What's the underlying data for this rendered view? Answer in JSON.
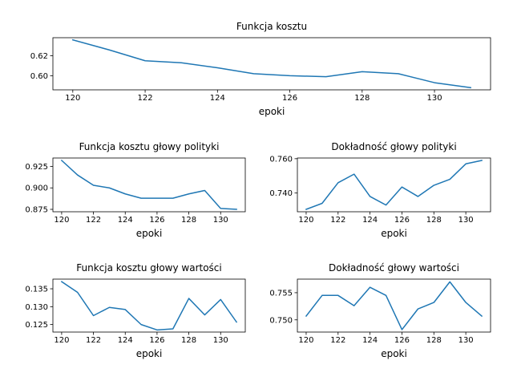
{
  "chart_data": [
    {
      "type": "line",
      "title": "Funkcja kosztu",
      "xlabel": "epoki",
      "ylabel": "",
      "x": [
        120,
        121,
        122,
        123,
        124,
        125,
        126,
        127,
        128,
        129,
        130,
        131
      ],
      "series": [
        {
          "values": [
            0.636,
            0.626,
            0.615,
            0.613,
            0.608,
            0.602,
            0.6,
            0.599,
            0.604,
            0.602,
            0.593,
            0.588
          ]
        }
      ],
      "xlim": [
        119.45,
        131.55
      ],
      "ylim": [
        0.5858,
        0.6382
      ],
      "xticks": [
        120,
        122,
        124,
        126,
        128,
        130
      ],
      "xtick_labels": [
        "120",
        "122",
        "124",
        "126",
        "128",
        "130"
      ],
      "yticks": [
        0.6,
        0.62
      ],
      "ytick_labels": [
        "0.60",
        "0.62"
      ],
      "color": "#1f77b4",
      "grid": false
    },
    {
      "type": "line",
      "title": "Funkcja kosztu głowy polityki",
      "xlabel": "epoki",
      "ylabel": "",
      "x": [
        120,
        121,
        122,
        123,
        124,
        125,
        126,
        127,
        128,
        129,
        130,
        131
      ],
      "series": [
        {
          "values": [
            0.932,
            0.915,
            0.903,
            0.9,
            0.893,
            0.888,
            0.888,
            0.888,
            0.893,
            0.897,
            0.876,
            0.875
          ]
        }
      ],
      "xlim": [
        119.45,
        131.55
      ],
      "ylim": [
        0.8722,
        0.9348
      ],
      "xticks": [
        120,
        122,
        124,
        126,
        128,
        130
      ],
      "xtick_labels": [
        "120",
        "122",
        "124",
        "126",
        "128",
        "130"
      ],
      "yticks": [
        0.875,
        0.9,
        0.925
      ],
      "ytick_labels": [
        "0.875",
        "0.900",
        "0.925"
      ],
      "color": "#1f77b4",
      "grid": false
    },
    {
      "type": "line",
      "title": "Dokładność głowy polityki",
      "xlabel": "epoki",
      "ylabel": "",
      "x": [
        120,
        121,
        122,
        123,
        124,
        125,
        126,
        127,
        128,
        129,
        130,
        131
      ],
      "series": [
        {
          "values": [
            0.7305,
            0.734,
            0.746,
            0.751,
            0.738,
            0.733,
            0.7435,
            0.738,
            0.7445,
            0.748,
            0.757,
            0.759
          ]
        }
      ],
      "xlim": [
        119.45,
        131.55
      ],
      "ylim": [
        0.7291,
        0.7604
      ],
      "xticks": [
        120,
        122,
        124,
        126,
        128,
        130
      ],
      "xtick_labels": [
        "120",
        "122",
        "124",
        "126",
        "128",
        "130"
      ],
      "yticks": [
        0.74,
        0.76
      ],
      "ytick_labels": [
        "0.740",
        "0.760"
      ],
      "color": "#1f77b4",
      "grid": false
    },
    {
      "type": "line",
      "title": "Funkcja kosztu głowy wartości",
      "xlabel": "epoki",
      "ylabel": "",
      "x": [
        120,
        121,
        122,
        123,
        124,
        125,
        126,
        127,
        128,
        129,
        130,
        131
      ],
      "series": [
        {
          "values": [
            0.137,
            0.134,
            0.1275,
            0.1298,
            0.1292,
            0.125,
            0.1235,
            0.1238,
            0.1323,
            0.1277,
            0.132,
            0.1257
          ]
        }
      ],
      "xlim": [
        119.45,
        131.55
      ],
      "ylim": [
        0.1229,
        0.1377
      ],
      "xticks": [
        120,
        122,
        124,
        126,
        128,
        130
      ],
      "xtick_labels": [
        "120",
        "122",
        "124",
        "126",
        "128",
        "130"
      ],
      "yticks": [
        0.125,
        0.13,
        0.135
      ],
      "ytick_labels": [
        "0.125",
        "0.130",
        "0.135"
      ],
      "color": "#1f77b4",
      "grid": false
    },
    {
      "type": "line",
      "title": "Dokładność głowy wartości",
      "xlabel": "epoki",
      "ylabel": "",
      "x": [
        120,
        121,
        122,
        123,
        124,
        125,
        126,
        127,
        128,
        129,
        130,
        131
      ],
      "series": [
        {
          "values": [
            0.7507,
            0.7545,
            0.7545,
            0.7526,
            0.756,
            0.7545,
            0.7482,
            0.752,
            0.7532,
            0.757,
            0.7532,
            0.7507
          ]
        }
      ],
      "xlim": [
        119.45,
        131.55
      ],
      "ylim": [
        0.74775,
        0.7575
      ],
      "xticks": [
        120,
        122,
        124,
        126,
        128,
        130
      ],
      "xtick_labels": [
        "120",
        "122",
        "124",
        "126",
        "128",
        "130"
      ],
      "yticks": [
        0.75,
        0.755
      ],
      "ytick_labels": [
        "0.750",
        "0.755"
      ],
      "color": "#1f77b4",
      "grid": false
    }
  ]
}
